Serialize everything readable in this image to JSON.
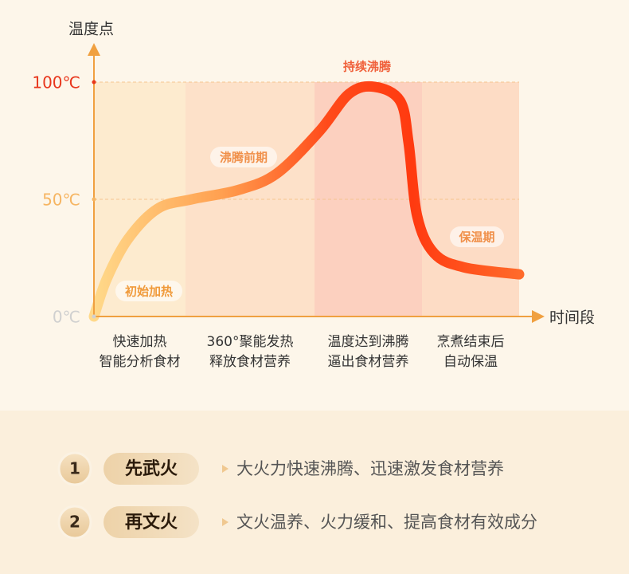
{
  "chart_data": {
    "type": "line",
    "y_axis_label": "温度点",
    "x_axis_label": "时间段",
    "ylim": [
      0,
      100
    ],
    "yticks": [
      {
        "value": 0,
        "label": "0℃"
      },
      {
        "value": 50,
        "label": "50℃"
      },
      {
        "value": 100,
        "label": "100℃"
      }
    ],
    "ytick_colors": [
      "#d0d0d0",
      "#f6b562",
      "#e8361c"
    ],
    "xlim": [
      0,
      100
    ],
    "grid": true,
    "categories": [
      [
        "快速加热",
        "智能分析食材"
      ],
      [
        "360°聚能发热",
        "释放食材营养"
      ],
      [
        "温度达到沸腾",
        "逼出食材营养"
      ],
      [
        "烹煮结束后",
        "自动保温"
      ]
    ],
    "phase_labels": [
      "初始加热",
      "沸腾前期",
      "持续沸腾",
      "保温期"
    ],
    "series": [
      {
        "x": [
          0,
          3,
          8,
          15,
          23,
          34,
          43,
          53,
          60,
          66,
          72,
          74,
          76,
          80,
          87,
          100
        ],
        "values": [
          0,
          16,
          33,
          46,
          50,
          54,
          61,
          79,
          95,
          98,
          92,
          74,
          43,
          27,
          21,
          18
        ]
      }
    ]
  },
  "modes": [
    {
      "number": 1,
      "name": "先武火",
      "description": "大火力快速沸腾、迅速激发食材营养"
    },
    {
      "number": 2,
      "name": "再文火",
      "description": "文火温养、火力缓和、提高食材有效成分"
    }
  ]
}
